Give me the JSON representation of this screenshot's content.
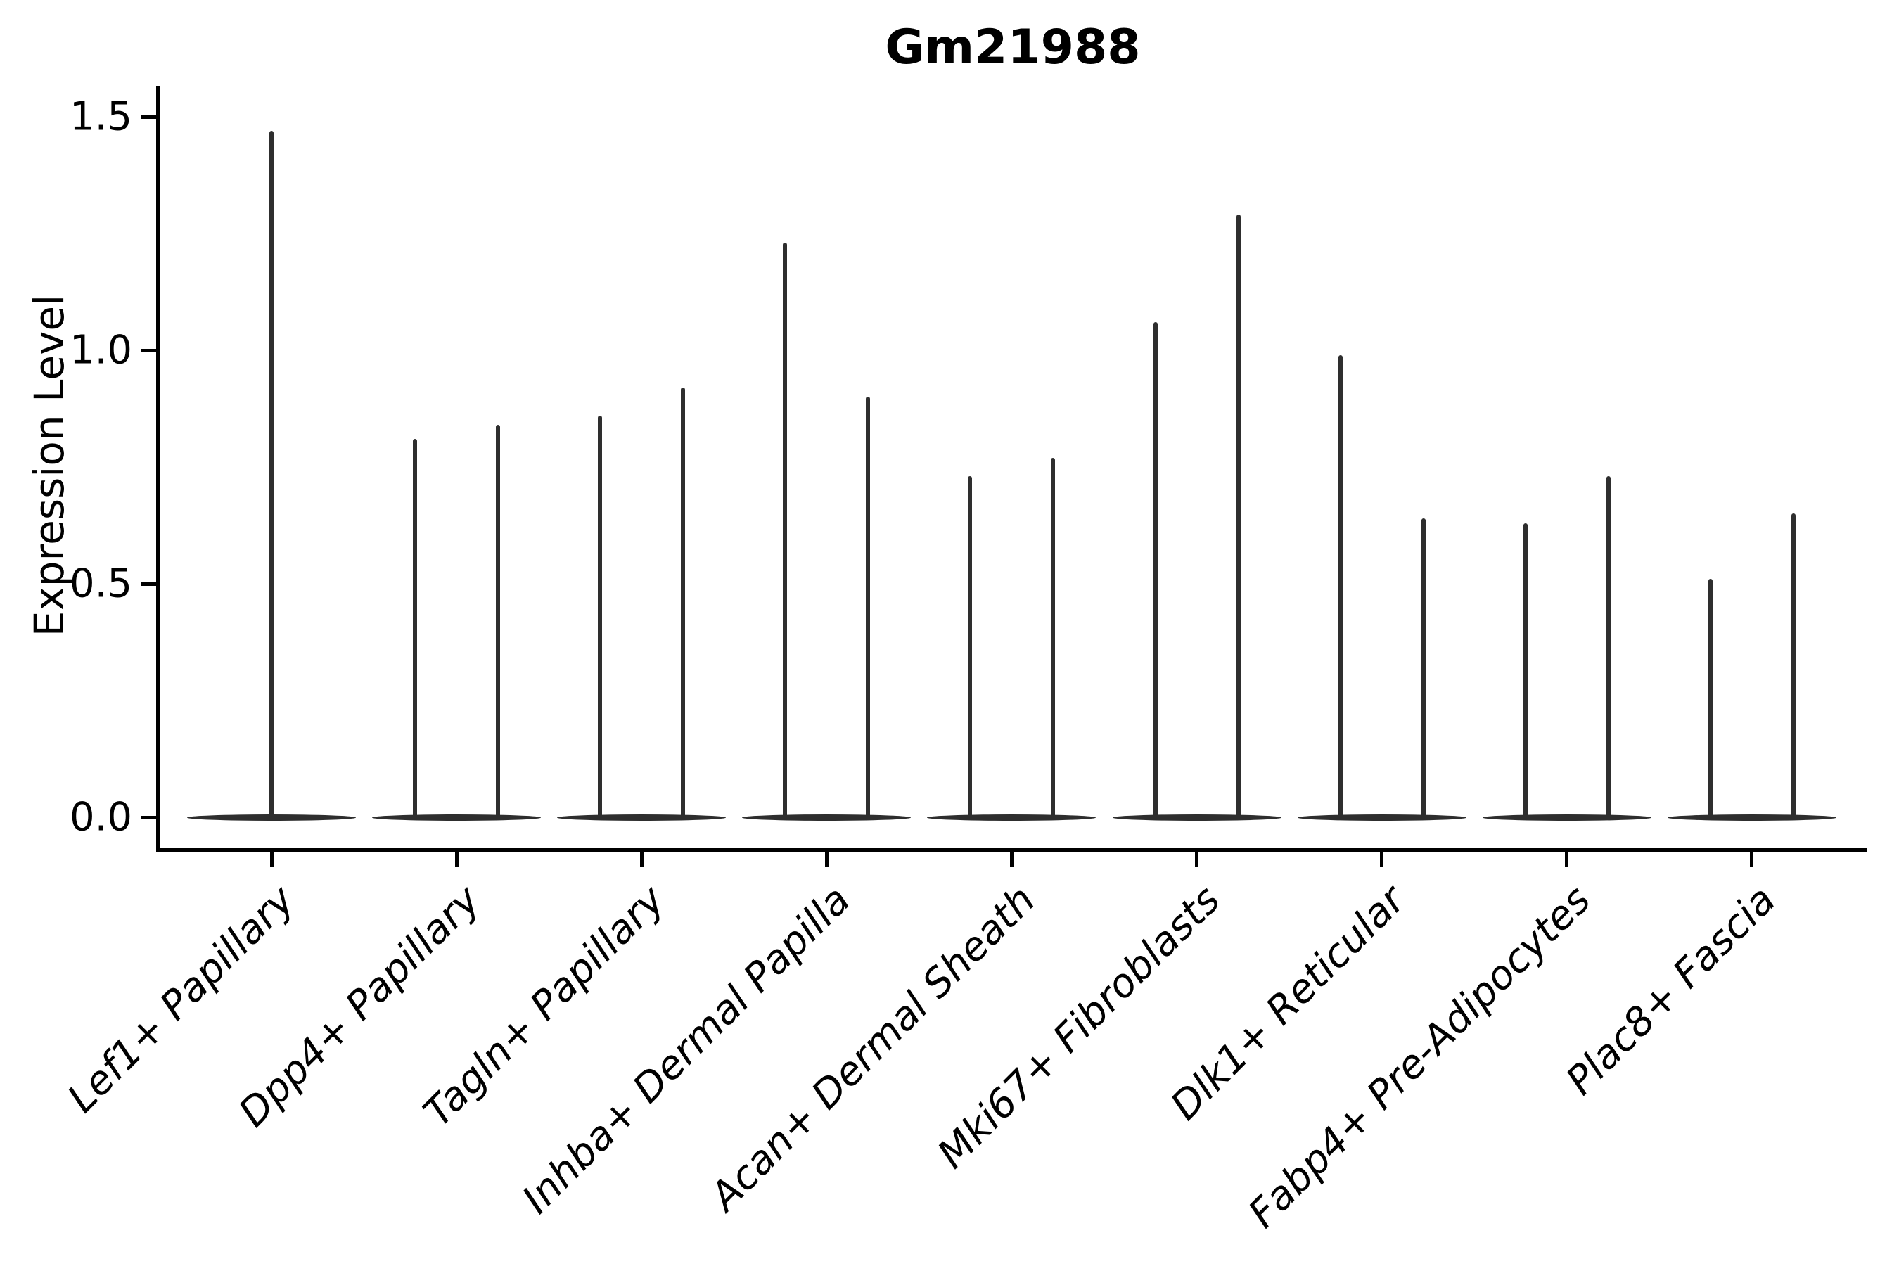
{
  "title": "Gm21988",
  "y_axis": {
    "label": "Expression Level",
    "tick_labels": [
      "0.0",
      "0.5",
      "1.0",
      "1.5"
    ]
  },
  "chart_data": {
    "type": "violin",
    "title": "Gm21988",
    "xlabel": "",
    "ylabel": "Expression Level",
    "ylim": [
      -0.07,
      1.57
    ],
    "yticks": [
      0.0,
      0.5,
      1.0,
      1.5
    ],
    "grid": false,
    "legend": "none",
    "line_color": "#2e2e2e",
    "axis_color": "#000000",
    "categories": [
      "Lef1+ Papillary",
      "Dpp4+ Papillary",
      "Tagln+ Papillary",
      "Inhba+ Dermal Papilla",
      "Acan+ Dermal Sheath",
      "Mki67+ Fibroblasts",
      "Dlk1+ Reticular",
      "Fabp4+ Pre-Adipocytes",
      "Plac8+ Fascia"
    ],
    "violins": [
      {
        "category": "Lef1+ Papillary",
        "spike_maxima": [
          1.47
        ]
      },
      {
        "category": "Dpp4+ Papillary",
        "spike_maxima": [
          0.81,
          0.84
        ]
      },
      {
        "category": "Tagln+ Papillary",
        "spike_maxima": [
          0.86,
          0.92
        ]
      },
      {
        "category": "Inhba+ Dermal Papilla",
        "spike_maxima": [
          1.23,
          0.9
        ]
      },
      {
        "category": "Acan+ Dermal Sheath",
        "spike_maxima": [
          0.73,
          0.77
        ]
      },
      {
        "category": "Mki67+ Fibroblasts",
        "spike_maxima": [
          1.06,
          1.29
        ]
      },
      {
        "category": "Dlk1+ Reticular",
        "spike_maxima": [
          0.99,
          0.64
        ]
      },
      {
        "category": "Fabp4+ Pre-Adipocytes",
        "spike_maxima": [
          0.63,
          0.73
        ]
      },
      {
        "category": "Plac8+ Fascia",
        "spike_maxima": [
          0.51,
          0.65
        ]
      }
    ],
    "description": "Expression of Gm21988 across fibroblast subtypes; nearly all cells at 0 (flat violin bases) with thin density spikes reaching the per-group maximum expression values listed in spike_maxima."
  }
}
